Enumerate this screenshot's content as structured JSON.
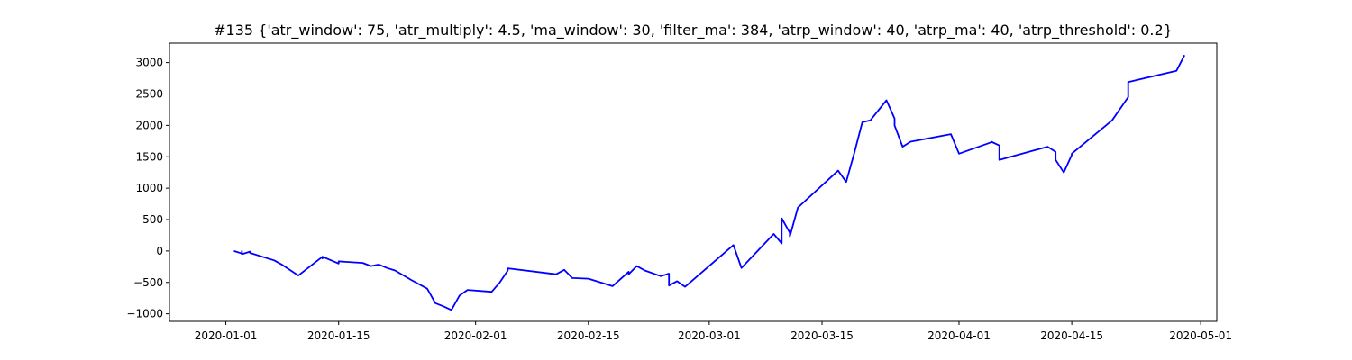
{
  "chart_data": {
    "type": "line",
    "title": "#135 {'atr_window': 75, 'atr_multiply': 4.5, 'ma_window': 30, 'filter_ma': 384, 'atrp_window': 40, 'atrp_ma': 40, 'atrp_threshold': 0.2}",
    "xlabel": "",
    "ylabel": "",
    "xlim": [
      "2019-12-25",
      "2020-05-03"
    ],
    "ylim": [
      -1120,
      3310
    ],
    "x_ticks": [
      "2020-01-01",
      "2020-01-15",
      "2020-02-01",
      "2020-02-15",
      "2020-03-01",
      "2020-03-15",
      "2020-04-01",
      "2020-04-15",
      "2020-05-01"
    ],
    "y_ticks": [
      -1000,
      -500,
      0,
      500,
      1000,
      1500,
      2000,
      2500,
      3000
    ],
    "grid": false,
    "series": [
      {
        "name": "",
        "color": "#0000ff",
        "x": [
          "2020-01-02",
          "2020-01-02",
          "2020-01-03",
          "2020-01-03",
          "2020-01-03",
          "2020-01-04",
          "2020-01-04",
          "2020-01-07",
          "2020-01-08",
          "2020-01-10",
          "2020-01-13",
          "2020-01-13",
          "2020-01-13",
          "2020-01-15",
          "2020-01-15",
          "2020-01-18",
          "2020-01-19",
          "2020-01-20",
          "2020-01-21",
          "2020-01-22",
          "2020-01-24",
          "2020-01-26",
          "2020-01-27",
          "2020-01-28",
          "2020-01-29",
          "2020-01-30",
          "2020-01-31",
          "2020-02-03",
          "2020-02-04",
          "2020-02-05",
          "2020-02-05",
          "2020-02-11",
          "2020-02-12",
          "2020-02-13",
          "2020-02-15",
          "2020-02-18",
          "2020-02-20",
          "2020-02-20",
          "2020-02-21",
          "2020-02-22",
          "2020-02-24",
          "2020-02-25",
          "2020-02-25",
          "2020-02-26",
          "2020-02-27",
          "2020-03-04",
          "2020-03-05",
          "2020-03-09",
          "2020-03-10",
          "2020-03-10",
          "2020-03-11",
          "2020-03-11",
          "2020-03-12",
          "2020-03-17",
          "2020-03-18",
          "2020-03-19",
          "2020-03-20",
          "2020-03-21",
          "2020-03-23",
          "2020-03-24",
          "2020-03-24",
          "2020-03-25",
          "2020-03-26",
          "2020-03-31",
          "2020-04-01",
          "2020-04-05",
          "2020-04-05",
          "2020-04-06",
          "2020-04-06",
          "2020-04-12",
          "2020-04-13",
          "2020-04-13",
          "2020-04-14",
          "2020-04-15",
          "2020-04-15",
          "2020-04-20",
          "2020-04-22",
          "2020-04-22",
          "2020-04-28",
          "2020-04-29"
        ],
        "values": [
          0,
          0,
          -40,
          0,
          -50,
          -10,
          -30,
          -150,
          -220,
          -390,
          -90,
          -120,
          -90,
          -200,
          -165,
          -190,
          -240,
          -215,
          -270,
          -310,
          -460,
          -600,
          -830,
          -880,
          -940,
          -710,
          -620,
          -650,
          -500,
          -310,
          -275,
          -370,
          -300,
          -430,
          -440,
          -560,
          -330,
          -370,
          -240,
          -310,
          -400,
          -360,
          -550,
          -480,
          -570,
          95,
          -270,
          270,
          120,
          520,
          290,
          230,
          690,
          1280,
          1100,
          1560,
          2050,
          2080,
          2400,
          2110,
          2000,
          1660,
          1740,
          1860,
          1550,
          1730,
          1740,
          1680,
          1450,
          1660,
          1580,
          1450,
          1250,
          1530,
          1550,
          2080,
          2450,
          2690,
          2870,
          3120
        ]
      }
    ]
  }
}
